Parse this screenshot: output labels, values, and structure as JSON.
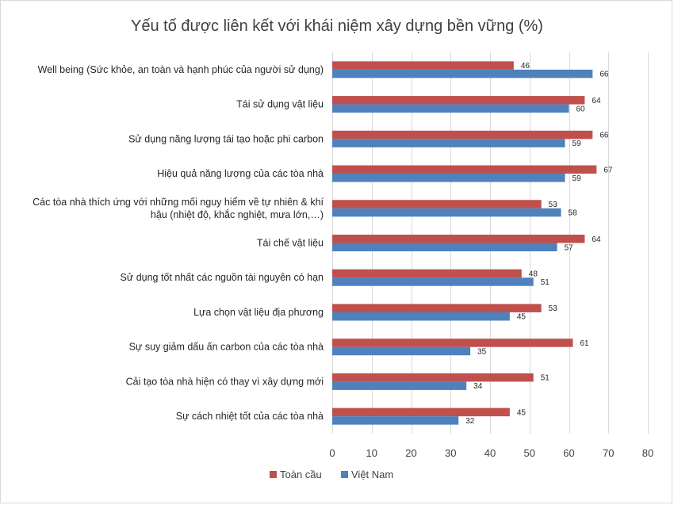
{
  "chart_data": {
    "type": "bar",
    "orientation": "horizontal",
    "title": "Yếu tố được liên kết với khái niệm xây dựng bền vững (%)",
    "categories": [
      [
        "Well being (Sức khỏe, an toàn và hạnh phúc của người sử dụng)"
      ],
      [
        "Tái sử dụng vật liệu"
      ],
      [
        "Sử dụng năng lượng tái tạo hoặc phi carbon"
      ],
      [
        "Hiệu quả năng lượng của các tòa nhà"
      ],
      [
        "Các tòa nhà thích ứng với những mối nguy hiểm về tự nhiên & khí",
        "hậu (nhiệt độ, khắc nghiệt, mưa lớn,…)"
      ],
      [
        "Tái chế vật liệu"
      ],
      [
        "Sử dụng tốt nhất các nguồn tài nguyên có hạn"
      ],
      [
        "Lựa chọn vật liệu địa phương"
      ],
      [
        "Sự suy giảm dấu ấn carbon của các tòa nhà"
      ],
      [
        "Cải tạo tòa nhà hiện có thay vì xây dựng mới"
      ],
      [
        "Sự cách nhiệt tốt của các tòa nhà"
      ]
    ],
    "series": [
      {
        "name": "Toàn cầu",
        "color": "#c0504d",
        "values": [
          46,
          64,
          66,
          67,
          53,
          64,
          48,
          53,
          61,
          51,
          45
        ]
      },
      {
        "name": "Việt Nam",
        "color": "#4f81bd",
        "values": [
          66,
          60,
          59,
          59,
          58,
          57,
          51,
          45,
          35,
          34,
          32
        ]
      }
    ],
    "xlim": [
      0,
      80
    ],
    "xticks": [
      0,
      10,
      20,
      30,
      40,
      50,
      60,
      70,
      80
    ],
    "grid": true,
    "legend": "bottom"
  }
}
